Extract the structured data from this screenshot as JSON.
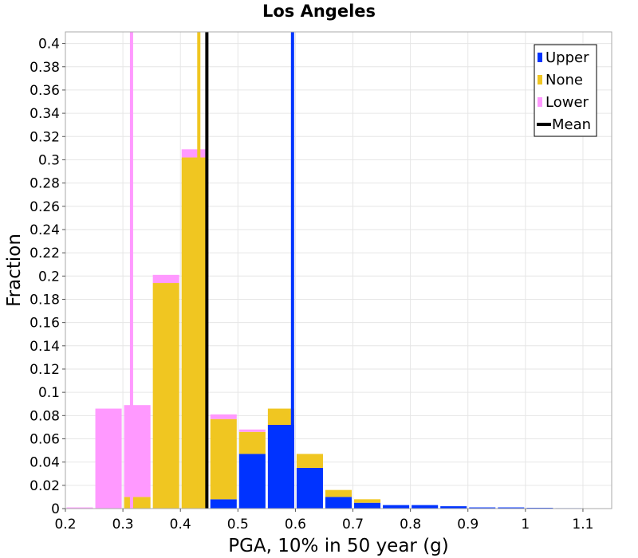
{
  "chart_data": {
    "type": "bar",
    "stacked": true,
    "title": "Los Angeles",
    "xlabel": "PGA, 10% in 50 year (g)",
    "ylabel": "Fraction",
    "xlim": [
      0.2,
      1.15
    ],
    "ylim": [
      0,
      0.41
    ],
    "x_ticks": [
      "0.2",
      "0.3",
      "0.4",
      "0.5",
      "0.6",
      "0.7",
      "0.8",
      "0.9",
      "1",
      "1.1"
    ],
    "y_ticks": [
      "0",
      "0.02",
      "0.04",
      "0.06",
      "0.08",
      "0.1",
      "0.12",
      "0.14",
      "0.16",
      "0.18",
      "0.2",
      "0.22",
      "0.24",
      "0.26",
      "0.28",
      "0.3",
      "0.32",
      "0.34",
      "0.36",
      "0.38",
      "0.4"
    ],
    "grid": true,
    "legend_position": "top-right",
    "bin_width": 0.05,
    "bin_centers": [
      0.225,
      0.275,
      0.325,
      0.375,
      0.425,
      0.475,
      0.525,
      0.575,
      0.625,
      0.675,
      0.725,
      0.775,
      0.825,
      0.875,
      0.925,
      0.975,
      1.025,
      1.075,
      1.125
    ],
    "series": [
      {
        "name": "Upper",
        "color": "#0033ff",
        "values": [
          0,
          0,
          0,
          0,
          0,
          0.008,
          0.047,
          0.072,
          0.035,
          0.01,
          0.005,
          0.003,
          0.003,
          0.002,
          0.001,
          0.001,
          0.0007,
          0.0004,
          0.0003
        ]
      },
      {
        "name": "None",
        "color": "#f0c621",
        "values": [
          0,
          0,
          0.01,
          0.194,
          0.302,
          0.069,
          0.019,
          0.014,
          0.012,
          0.006,
          0.003,
          0,
          0,
          0,
          0,
          0,
          0,
          0,
          0
        ]
      },
      {
        "name": "Lower",
        "color": "#ff99ff",
        "values": [
          0.001,
          0.086,
          0.079,
          0.007,
          0.007,
          0.004,
          0.002,
          0,
          0,
          0,
          0,
          0,
          0,
          0,
          0,
          0,
          0,
          0,
          0
        ]
      }
    ],
    "vertical_lines": [
      {
        "series": "Lower",
        "x": 0.315,
        "color": "#ff99ff"
      },
      {
        "series": "None",
        "x": 0.432,
        "color": "#f0c621"
      },
      {
        "series": "Mean",
        "x": 0.446,
        "color": "#000000"
      },
      {
        "series": "Upper",
        "x": 0.595,
        "color": "#0033ff"
      }
    ],
    "legend": [
      {
        "label": "Upper",
        "color": "#0033ff",
        "kind": "box"
      },
      {
        "label": "None",
        "color": "#f0c621",
        "kind": "box"
      },
      {
        "label": "Lower",
        "color": "#ff99ff",
        "kind": "box"
      },
      {
        "label": "Mean",
        "color": "#000000",
        "kind": "line"
      }
    ]
  }
}
